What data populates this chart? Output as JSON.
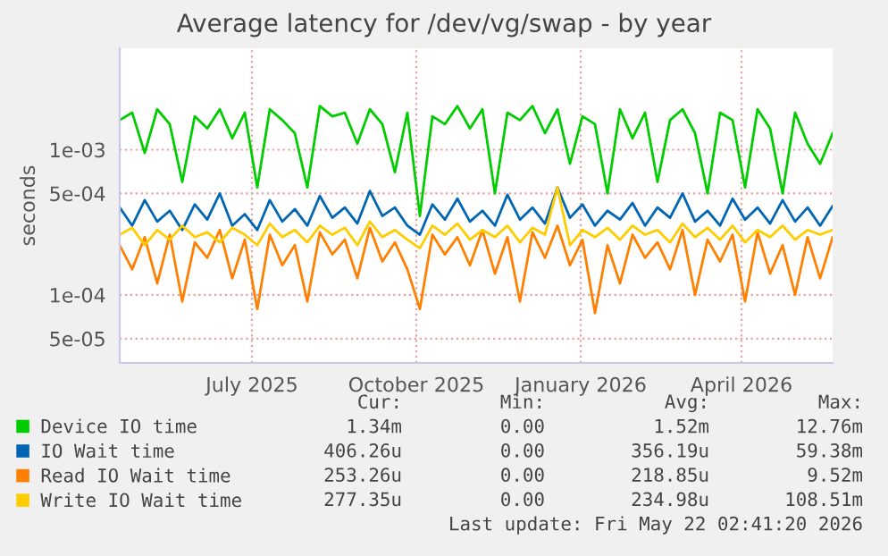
{
  "chart_data": {
    "type": "line",
    "title": "Average latency for /dev/vg/swap - by year",
    "ylabel": "seconds",
    "x": [
      "2025-04-18",
      "2025-04-25",
      "2025-05-02",
      "2025-05-09",
      "2025-05-16",
      "2025-05-23",
      "2025-05-30",
      "2025-06-06",
      "2025-06-13",
      "2025-06-20",
      "2025-06-27",
      "2025-07-04",
      "2025-07-11",
      "2025-07-18",
      "2025-07-25",
      "2025-08-01",
      "2025-08-08",
      "2025-08-15",
      "2025-08-22",
      "2025-08-29",
      "2025-09-05",
      "2025-09-12",
      "2025-09-19",
      "2025-09-26",
      "2025-10-03",
      "2025-10-10",
      "2025-10-17",
      "2025-10-24",
      "2025-10-31",
      "2025-11-07",
      "2025-11-14",
      "2025-11-21",
      "2025-11-28",
      "2025-12-05",
      "2025-12-12",
      "2025-12-19",
      "2025-12-26",
      "2026-01-02",
      "2026-01-09",
      "2026-01-16",
      "2026-01-23",
      "2026-01-30",
      "2026-02-06",
      "2026-02-13",
      "2026-02-20",
      "2026-02-27",
      "2026-03-06",
      "2026-03-13",
      "2026-03-20",
      "2026-03-27",
      "2026-04-03",
      "2026-04-10",
      "2026-04-17",
      "2026-04-24",
      "2026-05-01",
      "2026-05-08",
      "2026-05-15",
      "2026-05-22"
    ],
    "series": [
      {
        "name": "Device IO time",
        "color": "#00cc00",
        "values": [
          0.0016,
          0.0018,
          0.00095,
          0.0019,
          0.0015,
          0.0006,
          0.0017,
          0.0014,
          0.0019,
          0.0012,
          0.0018,
          0.00055,
          0.0019,
          0.0016,
          0.0013,
          0.00055,
          0.002,
          0.0017,
          0.0018,
          0.0011,
          0.0019,
          0.0015,
          0.0007,
          0.0018,
          0.00035,
          0.0017,
          0.0015,
          0.002,
          0.0014,
          0.0019,
          0.0005,
          0.0018,
          0.0016,
          0.002,
          0.0013,
          0.0019,
          0.0008,
          0.0017,
          0.0015,
          0.0005,
          0.0019,
          0.0012,
          0.0018,
          0.0006,
          0.0016,
          0.0019,
          0.0013,
          0.0005,
          0.0018,
          0.0016,
          0.00055,
          0.0019,
          0.0014,
          0.0005,
          0.0018,
          0.0011,
          0.0008,
          0.0013
        ]
      },
      {
        "name": "IO Wait time",
        "color": "#0066b3",
        "values": [
          0.0004,
          0.0003,
          0.00045,
          0.00032,
          0.00038,
          0.00028,
          0.00042,
          0.00033,
          0.0005,
          0.0003,
          0.00036,
          0.00028,
          0.00045,
          0.00032,
          0.00039,
          0.0003,
          0.00048,
          0.00034,
          0.0004,
          0.00031,
          0.00052,
          0.00035,
          0.0004,
          0.0003,
          0.00026,
          0.00042,
          0.00033,
          0.00046,
          0.00032,
          0.00038,
          0.0003,
          0.00049,
          0.00033,
          0.0004,
          0.00031,
          0.00055,
          0.00034,
          0.00042,
          0.0003,
          0.00038,
          0.00033,
          0.00043,
          0.0003,
          0.0004,
          0.00034,
          0.0005,
          0.00032,
          0.00038,
          0.0003,
          0.00046,
          0.00033,
          0.0004,
          0.00031,
          0.00045,
          0.00032,
          0.0004,
          0.0003,
          0.00041
        ]
      },
      {
        "name": "Read IO Wait time",
        "color": "#ff8000",
        "values": [
          0.00022,
          0.00015,
          0.00025,
          0.00012,
          0.00026,
          9e-05,
          0.00023,
          0.00018,
          0.00028,
          0.00013,
          0.00024,
          8e-05,
          0.00026,
          0.00016,
          0.00022,
          9e-05,
          0.00027,
          0.00019,
          0.00024,
          0.00013,
          0.00029,
          0.00017,
          0.00023,
          0.00015,
          8e-05,
          0.00026,
          0.00019,
          0.00025,
          0.00016,
          0.00028,
          0.00014,
          0.00025,
          9e-05,
          0.00027,
          0.00018,
          0.0003,
          0.00016,
          0.00024,
          7.5e-05,
          0.00022,
          0.00012,
          0.00026,
          0.00018,
          0.00023,
          0.00015,
          0.00028,
          0.0001,
          0.00024,
          0.00017,
          0.00026,
          9e-05,
          0.00027,
          0.00014,
          0.00022,
          0.0001,
          0.00025,
          0.00013,
          0.00025
        ]
      },
      {
        "name": "Write IO Wait time",
        "color": "#ffcc00",
        "values": [
          0.00026,
          0.00029,
          0.00022,
          0.00028,
          0.00024,
          0.0003,
          0.00025,
          0.00027,
          0.00023,
          0.00029,
          0.00026,
          0.00022,
          0.00031,
          0.00025,
          0.00028,
          0.00023,
          0.0003,
          0.00026,
          0.00029,
          0.00022,
          0.00032,
          0.00025,
          0.00028,
          0.00024,
          0.00021,
          0.0003,
          0.00026,
          0.00031,
          0.00024,
          0.00028,
          0.00025,
          0.0003,
          0.00023,
          0.00029,
          0.00026,
          0.00055,
          0.00022,
          0.00028,
          0.00025,
          0.00029,
          0.00024,
          0.0003,
          0.00026,
          0.00028,
          0.00023,
          0.00031,
          0.00025,
          0.00029,
          0.00024,
          0.0003,
          0.00023,
          0.00028,
          0.00025,
          0.0003,
          0.00024,
          0.00028,
          0.00026,
          0.00028
        ]
      }
    ],
    "log": true,
    "xlim": [
      "2025-04-18",
      "2026-05-22"
    ],
    "xticks": [
      {
        "value": "2025-07-01",
        "label": "July 2025"
      },
      {
        "value": "2025-10-01",
        "label": "October 2025"
      },
      {
        "value": "2026-01-01",
        "label": "January 2026"
      },
      {
        "value": "2026-04-01",
        "label": "April 2026"
      }
    ],
    "ylim": [
      3.4e-05,
      0.005
    ],
    "yticks": [
      {
        "value": 5e-05,
        "label": "5e-05"
      },
      {
        "value": 0.0001,
        "label": "1e-04"
      },
      {
        "value": 0.0005,
        "label": "5e-04"
      },
      {
        "value": 0.001,
        "label": "1e-03"
      }
    ],
    "grid": true,
    "legend": "bottom",
    "annotations": [
      "Cur:",
      "Min:",
      "Avg:",
      "Max:",
      "1.34m",
      "0.00",
      "1.52m",
      "12.76m",
      "406.26u",
      "0.00",
      "356.19u",
      "59.38m",
      "253.26u",
      "0.00",
      "218.85u",
      "9.52m",
      "277.35u",
      "0.00",
      "234.98u",
      "108.51m",
      "Last update: Fri May 22 02:41:20 2026"
    ]
  }
}
